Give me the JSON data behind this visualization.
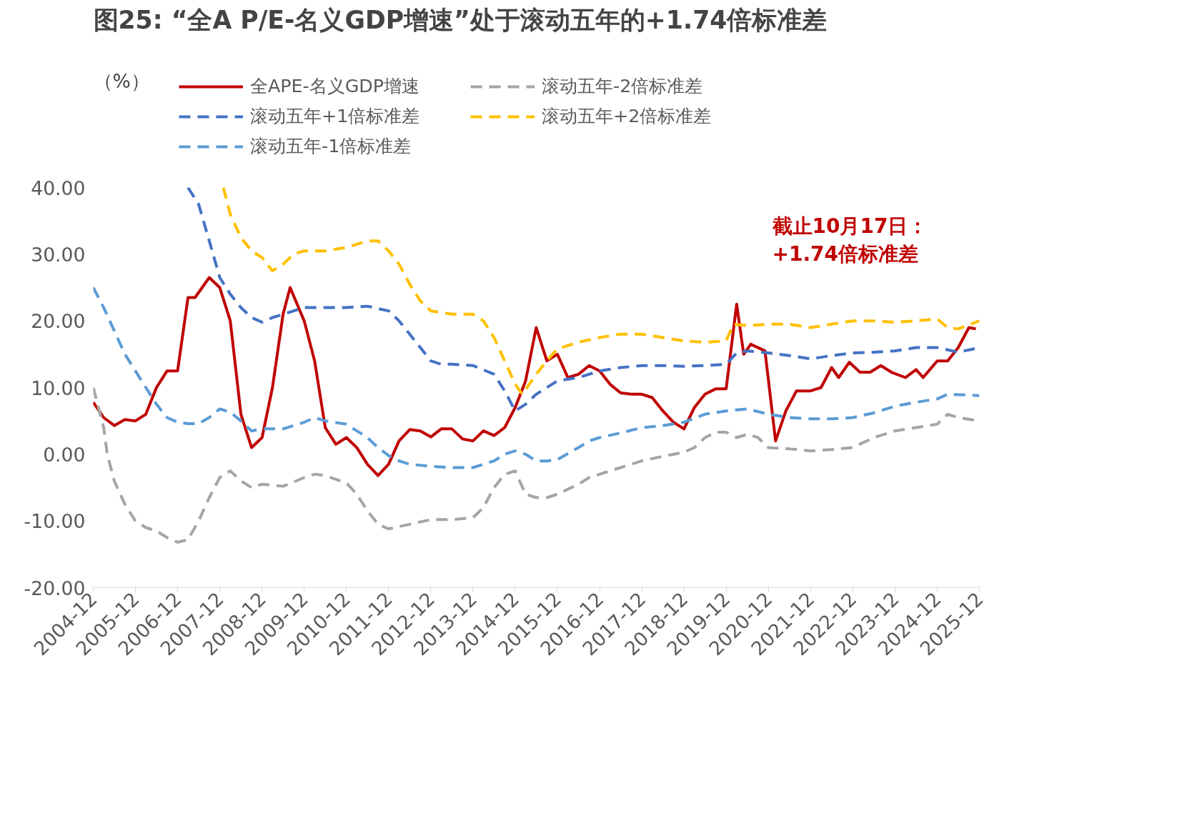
{
  "chart_data": {
    "type": "line",
    "title": "图25:  “全A P/E-名义GDP增速”处于滚动五年的+1.74倍标准差",
    "ylabel": "（%）",
    "annotations": [
      "截止10月17日：\n+1.74倍标准差"
    ],
    "xlim": [
      "2004-12",
      "2025-12"
    ],
    "xticks": [
      "2004-12",
      "2005-12",
      "2006-12",
      "2007-12",
      "2008-12",
      "2009-12",
      "2010-12",
      "2011-12",
      "2012-12",
      "2013-12",
      "2014-12",
      "2015-12",
      "2016-12",
      "2017-12",
      "2018-12",
      "2019-12",
      "2020-12",
      "2021-12",
      "2022-12",
      "2023-12",
      "2024-12",
      "2025-12"
    ],
    "ylim": [
      -20,
      40
    ],
    "yticks": [
      {
        "value": -20,
        "label": "-20.00"
      },
      {
        "value": -10,
        "label": "-10.00"
      },
      {
        "value": 0,
        "label": "0.00"
      },
      {
        "value": 10,
        "label": "10.00"
      },
      {
        "value": 20,
        "label": "20.00"
      },
      {
        "value": 30,
        "label": "30.00"
      },
      {
        "value": 40,
        "label": "40.00"
      }
    ],
    "grid": false,
    "legend": "top",
    "line_style": "dashed",
    "series": [
      {
        "name": "全APE-名义GDP增速",
        "color": "#c00000",
        "line_style": "solid",
        "x": [
          "2004-12",
          "2005-03",
          "2005-06",
          "2005-09",
          "2005-12",
          "2006-03",
          "2006-06",
          "2006-09",
          "2006-12",
          "2007-03",
          "2007-05",
          "2007-09",
          "2007-12",
          "2008-03",
          "2008-06",
          "2008-09",
          "2008-12",
          "2009-03",
          "2009-06",
          "2009-08",
          "2009-12",
          "2010-03",
          "2010-06",
          "2010-09",
          "2010-12",
          "2011-03",
          "2011-06",
          "2011-09",
          "2011-12",
          "2012-03",
          "2012-06",
          "2012-09",
          "2012-12",
          "2013-03",
          "2013-06",
          "2013-09",
          "2013-12",
          "2014-03",
          "2014-06",
          "2014-09",
          "2014-12",
          "2015-03",
          "2015-06",
          "2015-09",
          "2015-12",
          "2016-03",
          "2016-06",
          "2016-09",
          "2016-12",
          "2017-03",
          "2017-06",
          "2017-09",
          "2017-12",
          "2018-03",
          "2018-06",
          "2018-09",
          "2018-12",
          "2019-03",
          "2019-06",
          "2019-09",
          "2019-12",
          "2020-03",
          "2020-05",
          "2020-07",
          "2020-11",
          "2021-02",
          "2021-05",
          "2021-08",
          "2021-12",
          "2022-03",
          "2022-06",
          "2022-08",
          "2022-11",
          "2023-02",
          "2023-05",
          "2023-08",
          "2023-11",
          "2024-03",
          "2024-06",
          "2024-08",
          "2024-12",
          "2025-03",
          "2025-06",
          "2025-09",
          "2025-11"
        ],
        "values": [
          7.8,
          5.5,
          4.3,
          5.2,
          5.0,
          6.0,
          10.0,
          12.5,
          12.5,
          23.5,
          23.5,
          26.5,
          25.0,
          20.0,
          6.0,
          1.0,
          2.5,
          10.0,
          21.0,
          25.0,
          20.0,
          14.0,
          4.0,
          1.5,
          2.5,
          1.0,
          -1.5,
          -3.2,
          -1.5,
          2.0,
          3.7,
          3.5,
          2.6,
          3.8,
          3.8,
          2.3,
          2.0,
          3.5,
          2.8,
          4.0,
          7.0,
          11.0,
          19.0,
          14.0,
          15.0,
          11.5,
          12.0,
          13.3,
          12.5,
          10.5,
          9.2,
          9.0,
          9.0,
          8.5,
          6.5,
          4.8,
          3.8,
          7.0,
          9.0,
          9.8,
          9.8,
          22.5,
          15.0,
          16.5,
          15.5,
          2.0,
          6.5,
          9.5,
          9.5,
          10.0,
          13.0,
          11.5,
          13.8,
          12.3,
          12.3,
          13.3,
          12.3,
          11.5,
          12.7,
          11.5,
          14.0,
          14.0,
          16.0,
          19.0,
          18.8
        ]
      },
      {
        "name": "滚动五年+1倍标准差",
        "color": "#4472c4",
        "x": [
          "2007-03",
          "2007-06",
          "2007-09",
          "2007-12",
          "2008-03",
          "2008-06",
          "2008-09",
          "2008-12",
          "2009-03",
          "2009-06",
          "2009-09",
          "2009-12",
          "2010-06",
          "2010-12",
          "2011-06",
          "2011-12",
          "2012-03",
          "2012-06",
          "2012-09",
          "2012-12",
          "2013-03",
          "2013-06",
          "2013-12",
          "2014-06",
          "2014-09",
          "2014-12",
          "2015-03",
          "2015-06",
          "2015-09",
          "2015-12",
          "2016-06",
          "2016-12",
          "2017-06",
          "2017-12",
          "2018-06",
          "2018-12",
          "2019-06",
          "2019-12",
          "2020-03",
          "2020-06",
          "2020-12",
          "2021-06",
          "2021-12",
          "2022-06",
          "2022-12",
          "2023-06",
          "2023-12",
          "2024-06",
          "2024-12",
          "2025-06",
          "2025-12"
        ],
        "values": [
          40,
          37.5,
          32,
          26.5,
          24,
          22,
          20.5,
          19.8,
          20.5,
          21,
          21.5,
          22,
          22,
          22,
          22.2,
          21.5,
          20,
          18,
          16,
          14,
          13.5,
          13.5,
          13.3,
          12.0,
          9.5,
          6.5,
          7.5,
          9.0,
          10.0,
          11,
          11.5,
          12.5,
          13.0,
          13.3,
          13.3,
          13.2,
          13.3,
          13.5,
          15.2,
          15.5,
          15.2,
          14.8,
          14.3,
          14.8,
          15.2,
          15.3,
          15.5,
          16.0,
          16.0,
          15.3,
          16.0
        ]
      },
      {
        "name": "滚动五年-1倍标准差",
        "color": "#5b9bd5",
        "x": [
          "2004-12",
          "2005-03",
          "2005-06",
          "2005-09",
          "2005-12",
          "2006-03",
          "2006-06",
          "2006-09",
          "2006-12",
          "2007-03",
          "2007-06",
          "2007-09",
          "2007-12",
          "2008-03",
          "2008-06",
          "2008-09",
          "2008-12",
          "2009-06",
          "2009-12",
          "2010-03",
          "2010-06",
          "2010-12",
          "2011-06",
          "2011-09",
          "2011-12",
          "2012-03",
          "2012-06",
          "2012-12",
          "2013-06",
          "2013-12",
          "2014-06",
          "2014-09",
          "2014-12",
          "2015-03",
          "2015-06",
          "2015-09",
          "2015-12",
          "2016-06",
          "2016-09",
          "2016-12",
          "2017-06",
          "2017-12",
          "2018-06",
          "2018-12",
          "2019-06",
          "2019-12",
          "2020-06",
          "2020-12",
          "2021-06",
          "2021-12",
          "2022-06",
          "2022-12",
          "2023-06",
          "2023-12",
          "2024-06",
          "2024-12",
          "2025-03",
          "2025-12"
        ],
        "values": [
          25.0,
          22,
          18.5,
          15.0,
          12.5,
          10,
          7.5,
          5.5,
          4.8,
          4.6,
          4.6,
          5.5,
          6.8,
          6.3,
          5.0,
          3.5,
          3.8,
          3.8,
          4.8,
          5.5,
          5.0,
          4.5,
          2.5,
          1.0,
          -0.2,
          -1.0,
          -1.5,
          -1.8,
          -2.0,
          -2.0,
          -1.0,
          0.0,
          0.5,
          0.0,
          -1.0,
          -1.0,
          -0.8,
          1.0,
          2.0,
          2.5,
          3.2,
          4.0,
          4.3,
          4.8,
          6.0,
          6.5,
          6.8,
          6.0,
          5.5,
          5.3,
          5.3,
          5.5,
          6.2,
          7.2,
          7.8,
          8.3,
          9.0,
          8.8
        ]
      },
      {
        "name": "滚动五年-2倍标准差",
        "color": "#a5a5a5",
        "x": [
          "2004-12",
          "2005-03",
          "2005-04",
          "2005-06",
          "2005-09",
          "2005-12",
          "2006-03",
          "2006-06",
          "2006-09",
          "2006-12",
          "2007-03",
          "2007-06",
          "2007-09",
          "2007-12",
          "2008-03",
          "2008-06",
          "2008-09",
          "2008-12",
          "2009-06",
          "2009-12",
          "2010-03",
          "2010-06",
          "2010-12",
          "2011-03",
          "2011-06",
          "2011-09",
          "2011-12",
          "2012-06",
          "2012-12",
          "2013-06",
          "2013-12",
          "2014-03",
          "2014-06",
          "2014-09",
          "2014-12",
          "2015-03",
          "2015-06",
          "2015-09",
          "2015-12",
          "2016-06",
          "2016-09",
          "2016-12",
          "2017-06",
          "2017-12",
          "2018-06",
          "2018-12",
          "2019-03",
          "2019-06",
          "2019-09",
          "2019-12",
          "2020-03",
          "2020-06",
          "2020-09",
          "2020-12",
          "2021-06",
          "2021-12",
          "2022-06",
          "2022-12",
          "2023-06",
          "2023-12",
          "2024-06",
          "2024-12",
          "2025-03",
          "2025-06",
          "2025-12"
        ],
        "values": [
          10.0,
          4.0,
          0.0,
          -4.0,
          -7.5,
          -10.0,
          -11.0,
          -11.5,
          -12.5,
          -13.2,
          -12.8,
          -10.0,
          -6.5,
          -3.5,
          -2.5,
          -4.0,
          -5.0,
          -4.5,
          -4.8,
          -3.5,
          -3.0,
          -3.2,
          -4.3,
          -6.0,
          -8.5,
          -10.5,
          -11.2,
          -10.5,
          -9.8,
          -9.8,
          -9.5,
          -8.0,
          -5.0,
          -3.0,
          -2.5,
          -6.0,
          -6.5,
          -6.5,
          -6.0,
          -4.5,
          -3.5,
          -3.0,
          -2.0,
          -1.0,
          -0.3,
          0.3,
          1.0,
          2.5,
          3.3,
          3.3,
          2.5,
          3.0,
          2.5,
          1.0,
          0.8,
          0.5,
          0.7,
          1.0,
          2.5,
          3.5,
          4.0,
          4.5,
          6.0,
          5.5,
          5.0
        ]
      },
      {
        "name": "滚动五年+2倍标准差",
        "color": "#ffc000",
        "x": [
          "2008-01",
          "2008-03",
          "2008-06",
          "2008-09",
          "2008-12",
          "2009-03",
          "2009-06",
          "2009-09",
          "2009-12",
          "2010-06",
          "2010-12",
          "2011-06",
          "2011-09",
          "2011-12",
          "2012-03",
          "2012-06",
          "2012-09",
          "2012-12",
          "2013-06",
          "2013-12",
          "2014-03",
          "2014-06",
          "2014-09",
          "2014-12",
          "2015-02",
          "2015-06",
          "2015-09",
          "2015-12",
          "2016-06",
          "2016-12",
          "2017-06",
          "2017-12",
          "2018-06",
          "2018-12",
          "2019-06",
          "2019-12",
          "2020-02",
          "2020-06",
          "2020-12",
          "2021-06",
          "2021-12",
          "2022-06",
          "2022-12",
          "2023-06",
          "2023-12",
          "2024-06",
          "2024-12",
          "2025-03",
          "2025-06",
          "2025-12"
        ],
        "values": [
          40,
          36,
          32.5,
          30.5,
          29.5,
          27.5,
          28.5,
          30.0,
          30.5,
          30.5,
          31.0,
          32.0,
          32.0,
          30.5,
          28.5,
          25.5,
          23.0,
          21.5,
          21.0,
          21.0,
          20.0,
          17.5,
          14.0,
          10.5,
          9.0,
          12.0,
          14.0,
          15.8,
          16.8,
          17.5,
          18.0,
          18.0,
          17.5,
          17.0,
          16.8,
          17.0,
          19.5,
          19.3,
          19.5,
          19.5,
          19.0,
          19.5,
          20.0,
          20.0,
          19.8,
          20.0,
          20.3,
          19.0,
          18.8,
          20.0
        ]
      }
    ]
  }
}
